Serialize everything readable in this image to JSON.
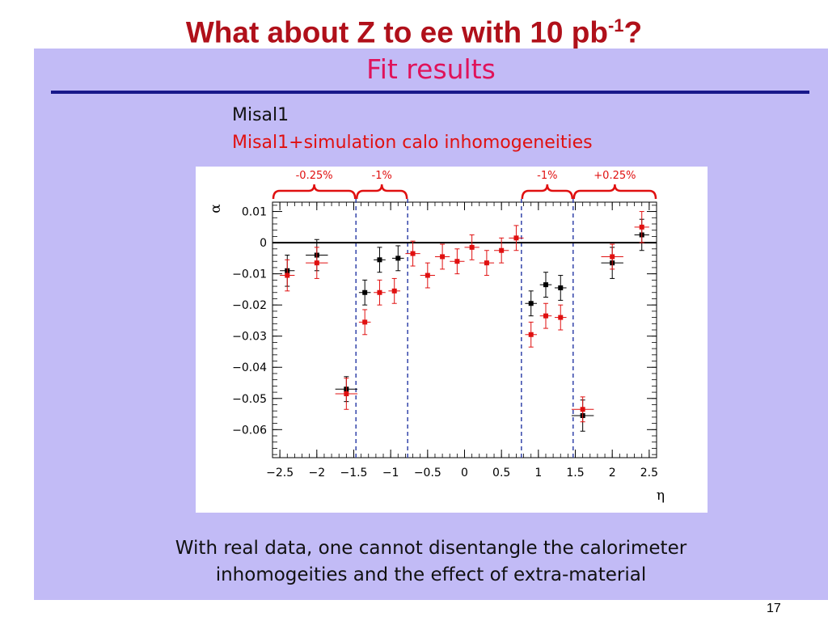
{
  "slide": {
    "title_main": "What about Z to ee with 10 pb",
    "title_sup": "-1",
    "title_tail": "?",
    "panel_title": "Fit results",
    "legend": [
      {
        "label": "Misal1",
        "color": "#111111"
      },
      {
        "label": "Misal1+simulation calo inhomogeneities",
        "color": "#e01010"
      }
    ],
    "conclusion_line1": "With real data, one cannot disentangle the calorimeter",
    "conclusion_line2": "inhomogeities and the effect of extra-material",
    "page_number": "17"
  },
  "colors": {
    "panel": "#c2bbf6",
    "title": "#b0101a",
    "panel_title": "#e0125a",
    "rule": "#18188a",
    "series_black": "#000000",
    "series_red": "#e01010",
    "dashed_lines": "#3344aa"
  },
  "chart_data": {
    "type": "scatter",
    "xlabel": "η",
    "ylabel": "α",
    "xlim": [
      -2.6,
      2.6
    ],
    "ylim": [
      -0.069,
      0.013
    ],
    "xticks": [
      {
        "v": -2.5,
        "label": "−2.5"
      },
      {
        "v": -2,
        "label": "−2"
      },
      {
        "v": -1.5,
        "label": "−1.5"
      },
      {
        "v": -1,
        "label": "−1"
      },
      {
        "v": -0.5,
        "label": "−0.5"
      },
      {
        "v": 0,
        "label": "0"
      },
      {
        "v": 0.5,
        "label": "0.5"
      },
      {
        "v": 1,
        "label": "1"
      },
      {
        "v": 1.5,
        "label": "1.5"
      },
      {
        "v": 2,
        "label": "2"
      },
      {
        "v": 2.5,
        "label": "2.5"
      }
    ],
    "yticks": [
      {
        "v": 0.01,
        "label": "0.01"
      },
      {
        "v": 0,
        "label": "0"
      },
      {
        "v": -0.01,
        "label": "−0.01"
      },
      {
        "v": -0.02,
        "label": "−0.02"
      },
      {
        "v": -0.03,
        "label": "−0.03"
      },
      {
        "v": -0.04,
        "label": "−0.04"
      },
      {
        "v": -0.05,
        "label": "−0.05"
      },
      {
        "v": -0.06,
        "label": "−0.06"
      }
    ],
    "reference_line_y": 0,
    "dashed_lines_x": [
      -1.47,
      -0.77,
      0.77,
      1.47
    ],
    "annotations": [
      {
        "label": "-0.25%",
        "x0": -2.6,
        "x1": -1.47
      },
      {
        "label": "-1%",
        "x0": -1.47,
        "x1": -0.77
      },
      {
        "label": "-1%",
        "x0": 0.77,
        "x1": 1.47
      },
      {
        "label": "+0.25%",
        "x0": 1.47,
        "x1": 2.6
      }
    ],
    "series": [
      {
        "name": "Misal1",
        "color": "#000000",
        "points": [
          {
            "x": -2.4,
            "y": -0.009,
            "xerr": 0.1,
            "yerr": 0.005
          },
          {
            "x": -2.0,
            "y": -0.004,
            "xerr": 0.15,
            "yerr": 0.005
          },
          {
            "x": -1.6,
            "y": -0.047,
            "xerr": 0.15,
            "yerr": 0.004
          },
          {
            "x": -1.35,
            "y": -0.016,
            "xerr": 0.08,
            "yerr": 0.004
          },
          {
            "x": -1.15,
            "y": -0.0055,
            "xerr": 0.08,
            "yerr": 0.004
          },
          {
            "x": -0.9,
            "y": -0.005,
            "xerr": 0.08,
            "yerr": 0.004
          },
          {
            "x": 0.9,
            "y": -0.0195,
            "xerr": 0.08,
            "yerr": 0.004
          },
          {
            "x": 1.1,
            "y": -0.0135,
            "xerr": 0.08,
            "yerr": 0.004
          },
          {
            "x": 1.3,
            "y": -0.0145,
            "xerr": 0.08,
            "yerr": 0.004
          },
          {
            "x": 1.6,
            "y": -0.0555,
            "xerr": 0.15,
            "yerr": 0.005
          },
          {
            "x": 2.0,
            "y": -0.0065,
            "xerr": 0.15,
            "yerr": 0.005
          },
          {
            "x": 2.4,
            "y": 0.0025,
            "xerr": 0.1,
            "yerr": 0.005
          }
        ]
      },
      {
        "name": "Misal1+simulation calo inhomogeneities",
        "color": "#e01010",
        "points": [
          {
            "x": -2.4,
            "y": -0.0105,
            "xerr": 0.1,
            "yerr": 0.005
          },
          {
            "x": -2.0,
            "y": -0.0065,
            "xerr": 0.15,
            "yerr": 0.005
          },
          {
            "x": -1.6,
            "y": -0.0485,
            "xerr": 0.15,
            "yerr": 0.005
          },
          {
            "x": -1.35,
            "y": -0.0255,
            "xerr": 0.08,
            "yerr": 0.004
          },
          {
            "x": -1.15,
            "y": -0.016,
            "xerr": 0.08,
            "yerr": 0.004
          },
          {
            "x": -0.95,
            "y": -0.0155,
            "xerr": 0.08,
            "yerr": 0.004
          },
          {
            "x": -0.7,
            "y": -0.0035,
            "xerr": 0.1,
            "yerr": 0.004
          },
          {
            "x": -0.5,
            "y": -0.0105,
            "xerr": 0.1,
            "yerr": 0.004
          },
          {
            "x": -0.3,
            "y": -0.0045,
            "xerr": 0.1,
            "yerr": 0.004
          },
          {
            "x": -0.1,
            "y": -0.006,
            "xerr": 0.1,
            "yerr": 0.004
          },
          {
            "x": 0.1,
            "y": -0.0015,
            "xerr": 0.1,
            "yerr": 0.004
          },
          {
            "x": 0.3,
            "y": -0.0065,
            "xerr": 0.1,
            "yerr": 0.004
          },
          {
            "x": 0.5,
            "y": -0.0025,
            "xerr": 0.1,
            "yerr": 0.004
          },
          {
            "x": 0.7,
            "y": 0.0015,
            "xerr": 0.1,
            "yerr": 0.004
          },
          {
            "x": 0.9,
            "y": -0.0295,
            "xerr": 0.08,
            "yerr": 0.004
          },
          {
            "x": 1.1,
            "y": -0.0235,
            "xerr": 0.08,
            "yerr": 0.004
          },
          {
            "x": 1.3,
            "y": -0.024,
            "xerr": 0.08,
            "yerr": 0.004
          },
          {
            "x": 1.6,
            "y": -0.0535,
            "xerr": 0.15,
            "yerr": 0.004
          },
          {
            "x": 2.0,
            "y": -0.0045,
            "xerr": 0.15,
            "yerr": 0.004
          },
          {
            "x": 2.4,
            "y": 0.005,
            "xerr": 0.1,
            "yerr": 0.005
          }
        ]
      }
    ]
  }
}
